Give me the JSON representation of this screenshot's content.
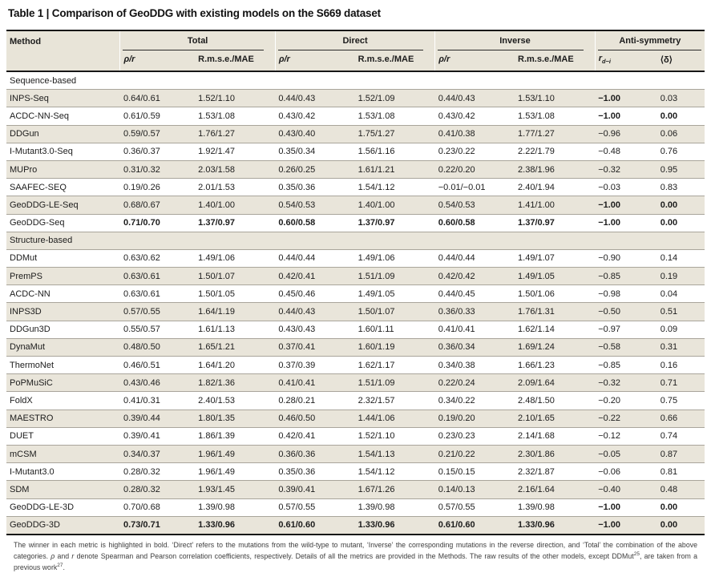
{
  "title": "Table 1 | Comparison of GeoDDG with existing models on the S669 dataset",
  "colors": {
    "row_beige": "#e9e5da",
    "header_beige": "#e8e4d8",
    "rule_dark": "#171717",
    "row_line": "#a9a59b"
  },
  "table": {
    "method_header": "Method",
    "groups": [
      "Total",
      "Direct",
      "Inverse",
      "Anti-symmetry"
    ],
    "sub": {
      "rho": "ρ/r",
      "rmse": "R.m.s.e./MAE",
      "rdi_base": "r",
      "rdi_sub": "d−i",
      "delta": "⟨δ⟩"
    },
    "sections": [
      {
        "label": "Sequence-based",
        "rows": [
          {
            "method": "INPS-Seq",
            "cells": [
              "0.64/0.61",
              "1.52/1.10",
              "0.44/0.43",
              "1.52/1.09",
              "0.44/0.43",
              "1.53/1.10",
              "−1.00",
              "0.03"
            ],
            "bold": [
              6
            ]
          },
          {
            "method": "ACDC-NN-Seq",
            "cells": [
              "0.61/0.59",
              "1.53/1.08",
              "0.43/0.42",
              "1.53/1.08",
              "0.43/0.42",
              "1.53/1.08",
              "−1.00",
              "0.00"
            ],
            "bold": [
              6,
              7
            ]
          },
          {
            "method": "DDGun",
            "cells": [
              "0.59/0.57",
              "1.76/1.27",
              "0.43/0.40",
              "1.75/1.27",
              "0.41/0.38",
              "1.77/1.27",
              "−0.96",
              "0.06"
            ],
            "bold": []
          },
          {
            "method": "I-Mutant3.0-Seq",
            "cells": [
              "0.36/0.37",
              "1.92/1.47",
              "0.35/0.34",
              "1.56/1.16",
              "0.23/0.22",
              "2.22/1.79",
              "−0.48",
              "0.76"
            ],
            "bold": []
          },
          {
            "method": "MUPro",
            "cells": [
              "0.31/0.32",
              "2.03/1.58",
              "0.26/0.25",
              "1.61/1.21",
              "0.22/0.20",
              "2.38/1.96",
              "−0.32",
              "0.95"
            ],
            "bold": []
          },
          {
            "method": "SAAFEC-SEQ",
            "cells": [
              "0.19/0.26",
              "2.01/1.53",
              "0.35/0.36",
              "1.54/1.12",
              "−0.01/−0.01",
              "2.40/1.94",
              "−0.03",
              "0.83"
            ],
            "bold": []
          },
          {
            "method": "GeoDDG-LE-Seq",
            "cells": [
              "0.68/0.67",
              "1.40/1.00",
              "0.54/0.53",
              "1.40/1.00",
              "0.54/0.53",
              "1.41/1.00",
              "−1.00",
              "0.00"
            ],
            "bold": [
              6,
              7
            ]
          },
          {
            "method": "GeoDDG-Seq",
            "cells": [
              "0.71/0.70",
              "1.37/0.97",
              "0.60/0.58",
              "1.37/0.97",
              "0.60/0.58",
              "1.37/0.97",
              "−1.00",
              "0.00"
            ],
            "bold": [
              0,
              1,
              2,
              3,
              4,
              5,
              6,
              7
            ]
          }
        ]
      },
      {
        "label": "Structure-based",
        "rows": [
          {
            "method": "DDMut",
            "cells": [
              "0.63/0.62",
              "1.49/1.06",
              "0.44/0.44",
              "1.49/1.06",
              "0.44/0.44",
              "1.49/1.07",
              "−0.90",
              "0.14"
            ],
            "bold": []
          },
          {
            "method": "PremPS",
            "cells": [
              "0.63/0.61",
              "1.50/1.07",
              "0.42/0.41",
              "1.51/1.09",
              "0.42/0.42",
              "1.49/1.05",
              "−0.85",
              "0.19"
            ],
            "bold": []
          },
          {
            "method": "ACDC-NN",
            "cells": [
              "0.63/0.61",
              "1.50/1.05",
              "0.45/0.46",
              "1.49/1.05",
              "0.44/0.45",
              "1.50/1.06",
              "−0.98",
              "0.04"
            ],
            "bold": []
          },
          {
            "method": "INPS3D",
            "cells": [
              "0.57/0.55",
              "1.64/1.19",
              "0.44/0.43",
              "1.50/1.07",
              "0.36/0.33",
              "1.76/1.31",
              "−0.50",
              "0.51"
            ],
            "bold": []
          },
          {
            "method": "DDGun3D",
            "cells": [
              "0.55/0.57",
              "1.61/1.13",
              "0.43/0.43",
              "1.60/1.11",
              "0.41/0.41",
              "1.62/1.14",
              "−0.97",
              "0.09"
            ],
            "bold": []
          },
          {
            "method": "DynaMut",
            "cells": [
              "0.48/0.50",
              "1.65/1.21",
              "0.37/0.41",
              "1.60/1.19",
              "0.36/0.34",
              "1.69/1.24",
              "−0.58",
              "0.31"
            ],
            "bold": []
          },
          {
            "method": "ThermoNet",
            "cells": [
              "0.46/0.51",
              "1.64/1.20",
              "0.37/0.39",
              "1.62/1.17",
              "0.34/0.38",
              "1.66/1.23",
              "−0.85",
              "0.16"
            ],
            "bold": []
          },
          {
            "method": "PoPMuSiC",
            "cells": [
              "0.43/0.46",
              "1.82/1.36",
              "0.41/0.41",
              "1.51/1.09",
              "0.22/0.24",
              "2.09/1.64",
              "−0.32",
              "0.71"
            ],
            "bold": []
          },
          {
            "method": "FoldX",
            "cells": [
              "0.41/0.31",
              "2.40/1.53",
              "0.28/0.21",
              "2.32/1.57",
              "0.34/0.22",
              "2.48/1.50",
              "−0.20",
              "0.75"
            ],
            "bold": []
          },
          {
            "method": "MAESTRO",
            "cells": [
              "0.39/0.44",
              "1.80/1.35",
              "0.46/0.50",
              "1.44/1.06",
              "0.19/0.20",
              "2.10/1.65",
              "−0.22",
              "0.66"
            ],
            "bold": []
          },
          {
            "method": "DUET",
            "cells": [
              "0.39/0.41",
              "1.86/1.39",
              "0.42/0.41",
              "1.52/1.10",
              "0.23/0.23",
              "2.14/1.68",
              "−0.12",
              "0.74"
            ],
            "bold": []
          },
          {
            "method": "mCSM",
            "cells": [
              "0.34/0.37",
              "1.96/1.49",
              "0.36/0.36",
              "1.54/1.13",
              "0.21/0.22",
              "2.30/1.86",
              "−0.05",
              "0.87"
            ],
            "bold": []
          },
          {
            "method": "I-Mutant3.0",
            "cells": [
              "0.28/0.32",
              "1.96/1.49",
              "0.35/0.36",
              "1.54/1.12",
              "0.15/0.15",
              "2.32/1.87",
              "−0.06",
              "0.81"
            ],
            "bold": []
          },
          {
            "method": "SDM",
            "cells": [
              "0.28/0.32",
              "1.93/1.45",
              "0.39/0.41",
              "1.67/1.26",
              "0.14/0.13",
              "2.16/1.64",
              "−0.40",
              "0.48"
            ],
            "bold": []
          },
          {
            "method": "GeoDDG-LE-3D",
            "cells": [
              "0.70/0.68",
              "1.39/0.98",
              "0.57/0.55",
              "1.39/0.98",
              "0.57/0.55",
              "1.39/0.98",
              "−1.00",
              "0.00"
            ],
            "bold": [
              6,
              7
            ]
          },
          {
            "method": "GeoDDG-3D",
            "cells": [
              "0.73/0.71",
              "1.33/0.96",
              "0.61/0.60",
              "1.33/0.96",
              "0.61/0.60",
              "1.33/0.96",
              "−1.00",
              "0.00"
            ],
            "bold": [
              0,
              1,
              2,
              3,
              4,
              5,
              6,
              7
            ]
          }
        ]
      }
    ]
  },
  "footnote": {
    "segments": [
      {
        "t": "The winner in each metric is highlighted in bold. ‘Direct’ refers to the mutations from the wild-type to mutant, ‘Inverse’ the corresponding mutations in the reverse direction, and ‘Total’ the combination of the above categories. "
      },
      {
        "t": "ρ",
        "i": true
      },
      {
        "t": " and "
      },
      {
        "t": "r",
        "i": true
      },
      {
        "t": " denote Spearman and Pearson correlation coefficients, respectively. Details of all the metrics are provided in the Methods. The raw results of the other models, except DDMut"
      },
      {
        "t": "25",
        "sup": true
      },
      {
        "t": ", are taken from a previous work"
      },
      {
        "t": "27",
        "sup": true
      },
      {
        "t": "."
      }
    ]
  }
}
